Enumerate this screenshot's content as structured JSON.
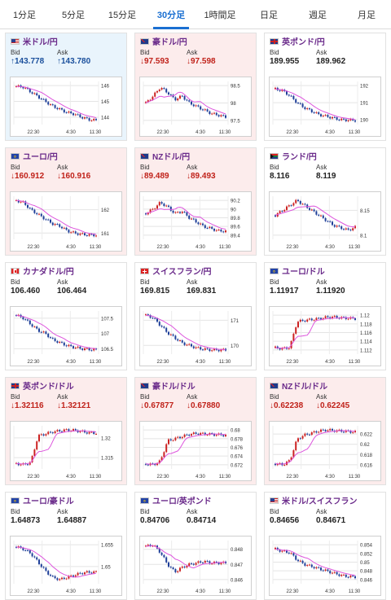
{
  "tabs": [
    "1分足",
    "5分足",
    "15分足",
    "30分足",
    "1時間足",
    "日足",
    "週足",
    "月足"
  ],
  "active_tab": 3,
  "bid_label": "Bid",
  "ask_label": "Ask",
  "time_labels": [
    "22:30",
    "4:30",
    "11:30"
  ],
  "cards": [
    {
      "pair": "米ドル/円",
      "trend": "up",
      "bid": "↑143.778",
      "ask": "↑143.780",
      "flags": [
        "us",
        "jp"
      ],
      "yticks": [
        "146",
        "145",
        "144"
      ],
      "chart_data": {
        "type": "candlestick",
        "y": [
          145.95,
          145.9,
          145.6,
          145.3,
          145.0,
          144.7,
          144.5,
          144.3,
          144.2,
          144.0,
          143.85,
          143.8
        ]
      }
    },
    {
      "pair": "豪ドル/円",
      "trend": "down",
      "bid": "↓97.593",
      "ask": "↓97.598",
      "flags": [
        "au",
        "jp"
      ],
      "yticks": [
        "98.5",
        "98",
        "97.5"
      ],
      "chart_data": {
        "type": "candlestick",
        "y": [
          98.0,
          98.2,
          98.45,
          98.3,
          98.1,
          98.2,
          98.0,
          97.9,
          97.8,
          97.7,
          97.65,
          97.6
        ]
      }
    },
    {
      "pair": "英ポンド/円",
      "trend": "flat",
      "bid": "189.955",
      "ask": "189.962",
      "flags": [
        "gb",
        "jp"
      ],
      "yticks": [
        "192",
        "191",
        "190"
      ],
      "chart_data": {
        "type": "candlestick",
        "y": [
          191.8,
          191.7,
          191.4,
          191.0,
          190.7,
          190.5,
          190.3,
          190.2,
          190.1,
          190.0,
          189.98,
          189.96
        ]
      }
    },
    {
      "pair": "ユーロ/円",
      "trend": "down",
      "bid": "↓160.912",
      "ask": "↓160.916",
      "flags": [
        "eu",
        "jp"
      ],
      "yticks": [
        "162",
        "161"
      ],
      "chart_data": {
        "type": "candlestick",
        "y": [
          162.4,
          162.3,
          162.0,
          161.8,
          161.6,
          161.4,
          161.3,
          161.1,
          161.0,
          160.95,
          160.92,
          160.91
        ]
      }
    },
    {
      "pair": "NZドル/円",
      "trend": "down",
      "bid": "↓89.489",
      "ask": "↓89.493",
      "flags": [
        "nz",
        "jp"
      ],
      "yticks": [
        "90.2",
        "90",
        "89.8",
        "89.6",
        "89.4"
      ],
      "chart_data": {
        "type": "candlestick",
        "y": [
          89.9,
          90.0,
          90.15,
          90.05,
          89.9,
          89.95,
          89.8,
          89.7,
          89.6,
          89.55,
          89.5,
          89.49
        ]
      }
    },
    {
      "pair": "ランド/円",
      "trend": "flat",
      "bid": "8.116",
      "ask": "8.119",
      "flags": [
        "za",
        "jp"
      ],
      "yticks": [
        "8.15",
        "8.1"
      ],
      "chart_data": {
        "type": "candlestick",
        "y": [
          8.14,
          8.15,
          8.16,
          8.17,
          8.16,
          8.15,
          8.14,
          8.13,
          8.12,
          8.115,
          8.11,
          8.116
        ]
      }
    },
    {
      "pair": "カナダドル/円",
      "trend": "flat",
      "bid": "106.460",
      "ask": "106.464",
      "flags": [
        "ca",
        "jp"
      ],
      "yticks": [
        "107.5",
        "107",
        "106.5"
      ],
      "chart_data": {
        "type": "candlestick",
        "y": [
          107.6,
          107.5,
          107.3,
          107.1,
          107.0,
          106.8,
          106.7,
          106.6,
          106.55,
          106.5,
          106.48,
          106.46
        ]
      }
    },
    {
      "pair": "スイスフラン/円",
      "trend": "flat",
      "bid": "169.815",
      "ask": "169.831",
      "flags": [
        "ch",
        "jp"
      ],
      "yticks": [
        "171",
        "170"
      ],
      "chart_data": {
        "type": "candlestick",
        "y": [
          171.2,
          171.1,
          170.8,
          170.5,
          170.3,
          170.1,
          170.0,
          169.9,
          169.85,
          169.82,
          169.82,
          169.82
        ]
      }
    },
    {
      "pair": "ユーロ/ドル",
      "trend": "flat",
      "bid": "1.11917",
      "ask": "1.11920",
      "flags": [
        "eu",
        "us"
      ],
      "yticks": [
        "1.12",
        "1.118",
        "1.116",
        "1.114",
        "1.112"
      ],
      "chart_data": {
        "type": "candlestick",
        "y": [
          1.1125,
          1.1123,
          1.1126,
          1.1185,
          1.1188,
          1.119,
          1.1192,
          1.1195,
          1.1196,
          1.1194,
          1.1193,
          1.1192
        ]
      }
    },
    {
      "pair": "英ポンド/ドル",
      "trend": "down",
      "bid": "↓1.32116",
      "ask": "↓1.32121",
      "flags": [
        "gb",
        "us"
      ],
      "yticks": [
        "1.32",
        "1.315"
      ],
      "chart_data": {
        "type": "candlestick",
        "y": [
          1.3135,
          1.3132,
          1.3138,
          1.3205,
          1.321,
          1.3215,
          1.3218,
          1.322,
          1.3219,
          1.3216,
          1.3213,
          1.3212
        ]
      }
    },
    {
      "pair": "豪ドル/ドル",
      "trend": "down",
      "bid": "↓0.67877",
      "ask": "↓0.67880",
      "flags": [
        "au",
        "us"
      ],
      "yticks": [
        "0.68",
        "0.678",
        "0.676",
        "0.674",
        "0.672"
      ],
      "chart_data": {
        "type": "candlestick",
        "y": [
          0.6722,
          0.672,
          0.6728,
          0.6775,
          0.678,
          0.6785,
          0.679,
          0.6792,
          0.6791,
          0.679,
          0.6789,
          0.6788
        ]
      }
    },
    {
      "pair": "NZドル/ドル",
      "trend": "down",
      "bid": "↓0.62238",
      "ask": "↓0.62245",
      "flags": [
        "nz",
        "us"
      ],
      "yticks": [
        "0.622",
        "0.62",
        "0.618",
        "0.616"
      ],
      "chart_data": {
        "type": "candlestick",
        "y": [
          0.6162,
          0.616,
          0.6168,
          0.621,
          0.6218,
          0.6222,
          0.6226,
          0.6228,
          0.6227,
          0.6226,
          0.6225,
          0.6224
        ]
      }
    },
    {
      "pair": "ユーロ/豪ドル",
      "trend": "flat",
      "bid": "1.64873",
      "ask": "1.64887",
      "flags": [
        "eu",
        "au"
      ],
      "yticks": [
        "1.655",
        "1.65"
      ],
      "chart_data": {
        "type": "candlestick",
        "y": [
          1.6545,
          1.654,
          1.653,
          1.651,
          1.649,
          1.6475,
          1.647,
          1.6475,
          1.648,
          1.6485,
          1.6487,
          1.6487
        ]
      }
    },
    {
      "pair": "ユーロ/英ポンド",
      "trend": "flat",
      "bid": "0.84706",
      "ask": "0.84714",
      "flags": [
        "eu",
        "gb"
      ],
      "yticks": [
        "0.848",
        "0.847",
        "0.846"
      ],
      "chart_data": {
        "type": "candlestick",
        "y": [
          0.8482,
          0.8483,
          0.8478,
          0.847,
          0.8465,
          0.8468,
          0.847,
          0.8471,
          0.8472,
          0.8471,
          0.8471,
          0.8471
        ]
      }
    },
    {
      "pair": "米ドル/スイスフラン",
      "trend": "flat",
      "bid": "0.84656",
      "ask": "0.84671",
      "flags": [
        "us",
        "ch"
      ],
      "yticks": [
        "0.854",
        "0.852",
        "0.85",
        "0.848",
        "0.846"
      ],
      "chart_data": {
        "type": "candlestick",
        "y": [
          0.853,
          0.8525,
          0.8522,
          0.8505,
          0.8495,
          0.849,
          0.8485,
          0.848,
          0.8475,
          0.847,
          0.8467,
          0.8466
        ]
      }
    }
  ],
  "colors": {
    "up_candle": "#cc2222",
    "down_candle": "#1f3f99",
    "ma_line": "#dd55dd",
    "pair_text": "#6a2a8a",
    "active_tab": "#1a6fd1"
  }
}
